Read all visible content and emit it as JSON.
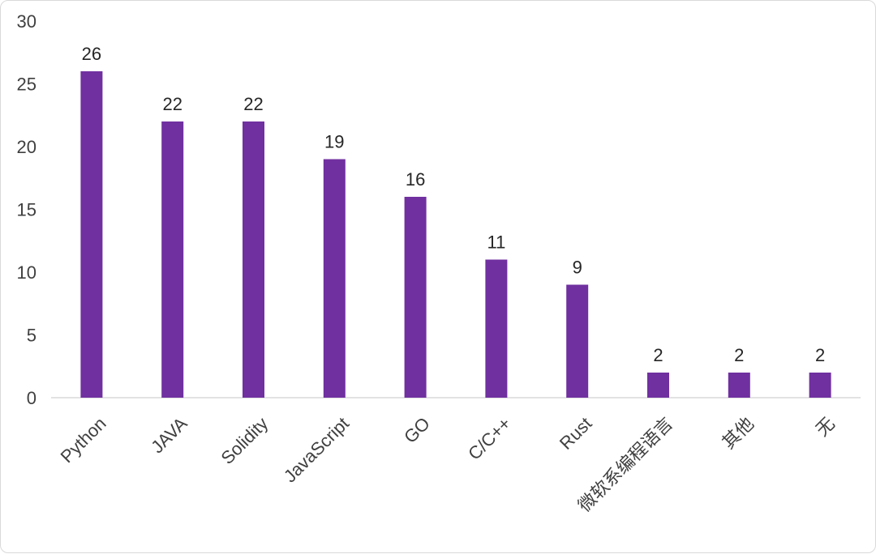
{
  "chart_data": {
    "type": "bar",
    "categories": [
      "Python",
      "JAVA",
      "Solidity",
      "JavaScript",
      "GO",
      "C/C++",
      "Rust",
      "微软系编程语言",
      "其他",
      "无"
    ],
    "values": [
      26,
      22,
      22,
      19,
      16,
      11,
      9,
      2,
      2,
      2
    ],
    "ylim": [
      0,
      30
    ],
    "yticks": [
      0,
      5,
      10,
      15,
      20,
      25,
      30
    ],
    "grid": false,
    "data_labels": true,
    "bar_color": "#7030a0",
    "axis_color": "#d9d9d9"
  }
}
